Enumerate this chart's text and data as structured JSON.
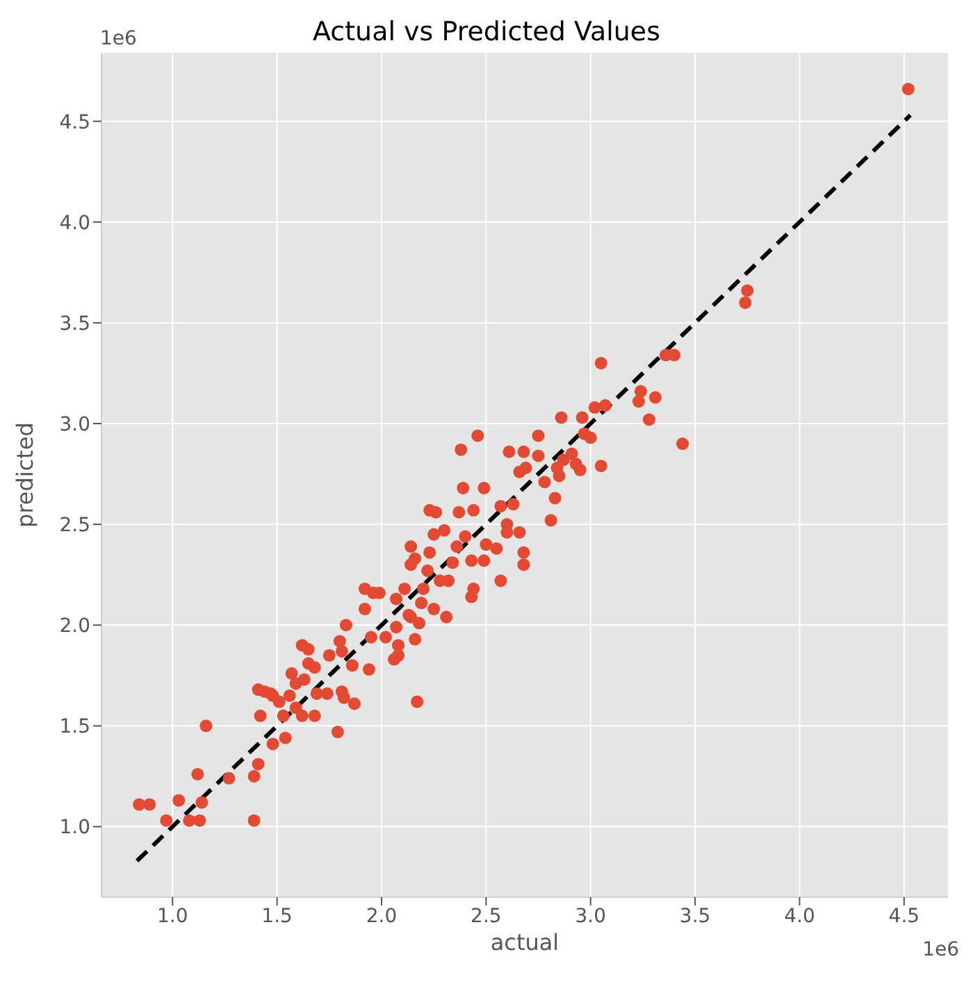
{
  "chart_data": {
    "type": "scatter",
    "title": "Actual vs Predicted Values",
    "xlabel": "actual",
    "ylabel": "predicted",
    "annotations": [
      "1e6",
      "1e6"
    ],
    "xlim": [
      0.66,
      4.71
    ],
    "ylim": [
      0.65,
      4.84
    ],
    "xticks": [
      {
        "value": 1,
        "label": "1.0"
      },
      1.5,
      {
        "value": 2,
        "label": "2.0"
      },
      2.5,
      {
        "value": 3,
        "label": "3.0"
      },
      3.5,
      {
        "value": 4,
        "label": "4.0"
      },
      4.5
    ],
    "yticks": [
      {
        "value": 1,
        "label": "1.0"
      },
      1.5,
      {
        "value": 2,
        "label": "2.0"
      },
      2.5,
      {
        "value": 3,
        "label": "3.0"
      },
      3.5,
      {
        "value": 4,
        "label": "4.0"
      },
      4.5
    ],
    "grid": true,
    "marker": "circle",
    "series": [
      {
        "color": "#e24a33",
        "x": [
          0.84,
          0.89,
          0.97,
          1.03,
          1.08,
          1.13,
          1.12,
          1.14,
          1.16,
          1.27,
          1.39,
          1.41,
          1.39,
          1.41,
          1.44,
          1.47,
          1.42,
          1.48,
          1.51,
          1.56,
          1.59,
          1.53,
          1.62,
          1.68,
          1.48,
          1.54,
          1.57,
          1.59,
          1.62,
          1.65,
          1.65,
          1.68,
          1.63,
          1.69,
          1.74,
          1.75,
          1.8,
          1.81,
          1.83,
          1.86,
          1.81,
          1.82,
          1.79,
          1.87,
          1.92,
          1.92,
          1.94,
          1.95,
          1.96,
          1.99,
          2.02,
          2.06,
          2.08,
          2.08,
          2.07,
          2.07,
          2.11,
          2.14,
          2.14,
          2.16,
          2.13,
          2.14,
          2.16,
          2.17,
          2.18,
          2.19,
          2.2,
          2.22,
          2.23,
          2.25,
          2.28,
          2.25,
          2.26,
          2.23,
          2.3,
          2.31,
          2.32,
          2.34,
          2.36,
          2.38,
          2.39,
          2.37,
          2.4,
          2.43,
          2.43,
          2.44,
          2.46,
          2.44,
          2.49,
          2.5,
          2.55,
          2.49,
          2.57,
          2.6,
          2.57,
          2.6,
          2.61,
          2.63,
          2.66,
          2.66,
          2.68,
          2.68,
          2.68,
          2.69,
          2.75,
          2.75,
          2.78,
          2.81,
          2.83,
          2.84,
          2.85,
          2.87,
          2.86,
          2.91,
          2.93,
          2.95,
          2.96,
          2.97,
          3.0,
          3.02,
          3.05,
          3.05,
          3.07,
          3.23,
          3.24,
          3.28,
          3.31,
          3.36,
          3.4,
          3.44,
          3.74,
          3.75,
          4.52
        ],
        "values": [
          1.11,
          1.11,
          1.03,
          1.13,
          1.03,
          1.03,
          1.26,
          1.12,
          1.5,
          1.24,
          1.25,
          1.31,
          1.03,
          1.68,
          1.67,
          1.66,
          1.55,
          1.65,
          1.62,
          1.65,
          1.59,
          1.55,
          1.55,
          1.55,
          1.41,
          1.44,
          1.76,
          1.71,
          1.9,
          1.88,
          1.81,
          1.79,
          1.73,
          1.66,
          1.66,
          1.85,
          1.92,
          1.87,
          2.0,
          1.8,
          1.67,
          1.64,
          1.47,
          1.61,
          2.08,
          2.18,
          1.78,
          1.94,
          2.16,
          2.16,
          1.94,
          1.83,
          1.9,
          1.85,
          1.99,
          2.13,
          2.18,
          2.39,
          2.3,
          2.33,
          2.05,
          2.04,
          1.93,
          1.62,
          2.01,
          2.11,
          2.18,
          2.27,
          2.36,
          2.08,
          2.22,
          2.45,
          2.56,
          2.57,
          2.47,
          2.04,
          2.22,
          2.31,
          2.39,
          2.87,
          2.68,
          2.56,
          2.44,
          2.32,
          2.14,
          2.18,
          2.94,
          2.57,
          2.68,
          2.4,
          2.38,
          2.32,
          2.22,
          2.46,
          2.59,
          2.5,
          2.86,
          2.6,
          2.46,
          2.76,
          2.36,
          2.86,
          2.3,
          2.78,
          2.84,
          2.94,
          2.71,
          2.52,
          2.63,
          2.78,
          2.74,
          2.82,
          3.03,
          2.85,
          2.8,
          2.77,
          3.03,
          2.95,
          2.93,
          3.08,
          3.3,
          2.79,
          3.09,
          3.11,
          3.16,
          3.02,
          3.13,
          3.34,
          3.34,
          2.9,
          3.6,
          3.66,
          4.66
        ]
      },
      {
        "type": "line",
        "color": "#000000",
        "line_style": "dashed",
        "marker": "none",
        "x": [
          0.83,
          4.53
        ],
        "values": [
          0.83,
          4.53
        ]
      }
    ]
  }
}
